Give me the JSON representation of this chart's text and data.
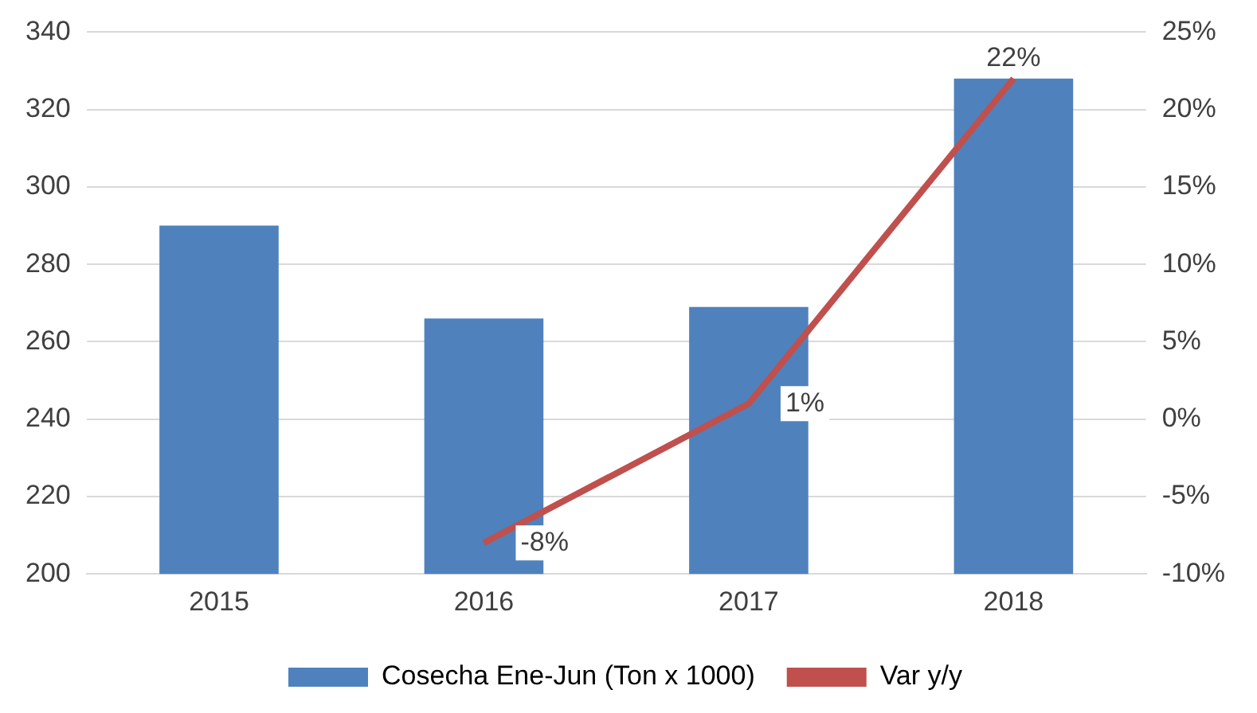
{
  "chart_data": {
    "type": "bar",
    "categories": [
      "2015",
      "2016",
      "2017",
      "2018"
    ],
    "series": [
      {
        "name": "Cosecha Ene-Jun (Ton x 1000)",
        "color": "#4f81bd",
        "values": [
          290,
          266,
          269,
          328
        ]
      },
      {
        "name": "Var y/y",
        "type": "line",
        "axis": "y2",
        "color": "#c0504d",
        "values": [
          null,
          -8,
          1,
          22
        ],
        "value_labels": [
          null,
          "-8%",
          "1%",
          "22%"
        ],
        "marker": "none"
      }
    ],
    "ylim": [
      200,
      340
    ],
    "yticks": [
      200,
      220,
      240,
      260,
      280,
      300,
      320,
      340
    ],
    "y2lim": [
      -10,
      25
    ],
    "y2ticks": [
      {
        "value": -10,
        "label": "-10%"
      },
      {
        "value": -5,
        "label": "-5%"
      },
      {
        "value": 0,
        "label": "0%"
      },
      {
        "value": 5,
        "label": "5%"
      },
      {
        "value": 10,
        "label": "10%"
      },
      {
        "value": 15,
        "label": "15%"
      },
      {
        "value": 20,
        "label": "20%"
      },
      {
        "value": 25,
        "label": "25%"
      }
    ],
    "grid": "y",
    "legend": "bottom"
  }
}
